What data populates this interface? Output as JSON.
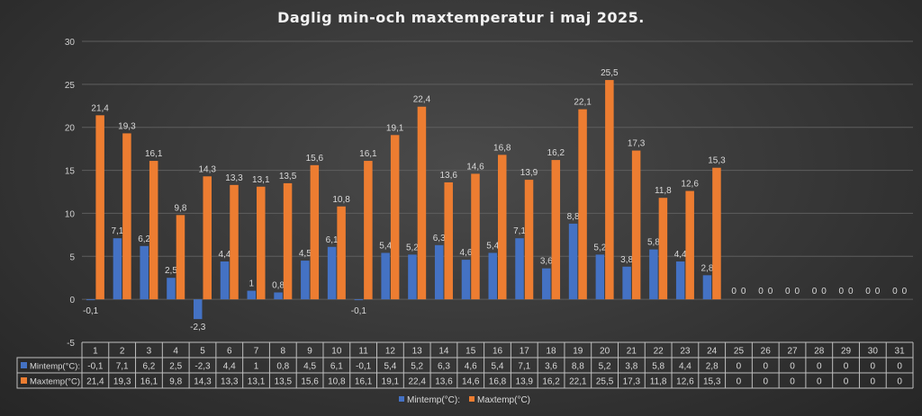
{
  "chart_data": {
    "type": "bar",
    "title": "Daglig min-och maxtemperatur i maj 2025.",
    "xlabel": "",
    "ylabel": "",
    "ylim": [
      -5,
      30
    ],
    "yticks": [
      -5,
      0,
      5,
      10,
      15,
      20,
      25,
      30
    ],
    "grid": true,
    "legend": "bottom",
    "data_table": true,
    "categories": [
      "1",
      "2",
      "3",
      "4",
      "5",
      "6",
      "7",
      "8",
      "9",
      "10",
      "11",
      "12",
      "13",
      "14",
      "15",
      "16",
      "17",
      "18",
      "19",
      "20",
      "21",
      "22",
      "23",
      "24",
      "25",
      "26",
      "27",
      "28",
      "29",
      "30",
      "31"
    ],
    "series": [
      {
        "name": "Mintemp(°C):",
        "color": "#4472c4",
        "values": [
          -0.1,
          7.1,
          6.2,
          2.5,
          -2.3,
          4.4,
          1,
          0.8,
          4.5,
          6.1,
          -0.1,
          5.4,
          5.2,
          6.3,
          4.6,
          5.4,
          7.1,
          3.6,
          8.8,
          5.2,
          3.8,
          5.8,
          4.4,
          2.8,
          0,
          0,
          0,
          0,
          0,
          0,
          0
        ],
        "labels": [
          "-0,1",
          "7,1",
          "6,2",
          "2,5",
          "-2,3",
          "4,4",
          "1",
          "0,8",
          "4,5",
          "6,1",
          "-0,1",
          "5,4",
          "5,2",
          "6,3",
          "4,6",
          "5,4",
          "7,1",
          "3,6",
          "8,8",
          "5,2",
          "3,8",
          "5,8",
          "4,4",
          "2,8",
          "0",
          "0",
          "0",
          "0",
          "0",
          "0",
          "0"
        ]
      },
      {
        "name": "Maxtemp(°C)",
        "color": "#ed7d31",
        "values": [
          21.4,
          19.3,
          16.1,
          9.8,
          14.3,
          13.3,
          13.1,
          13.5,
          15.6,
          10.8,
          16.1,
          19.1,
          22.4,
          13.6,
          14.6,
          16.8,
          13.9,
          16.2,
          22.1,
          25.5,
          17.3,
          11.8,
          12.6,
          15.3,
          0,
          0,
          0,
          0,
          0,
          0,
          0
        ],
        "labels": [
          "21,4",
          "19,3",
          "16,1",
          "9,8",
          "14,3",
          "13,3",
          "13,1",
          "13,5",
          "15,6",
          "10,8",
          "16,1",
          "19,1",
          "22,4",
          "13,6",
          "14,6",
          "16,8",
          "13,9",
          "16,2",
          "22,1",
          "25,5",
          "17,3",
          "11,8",
          "12,6",
          "15,3",
          "0",
          "0",
          "0",
          "0",
          "0",
          "0",
          "0"
        ]
      }
    ]
  }
}
